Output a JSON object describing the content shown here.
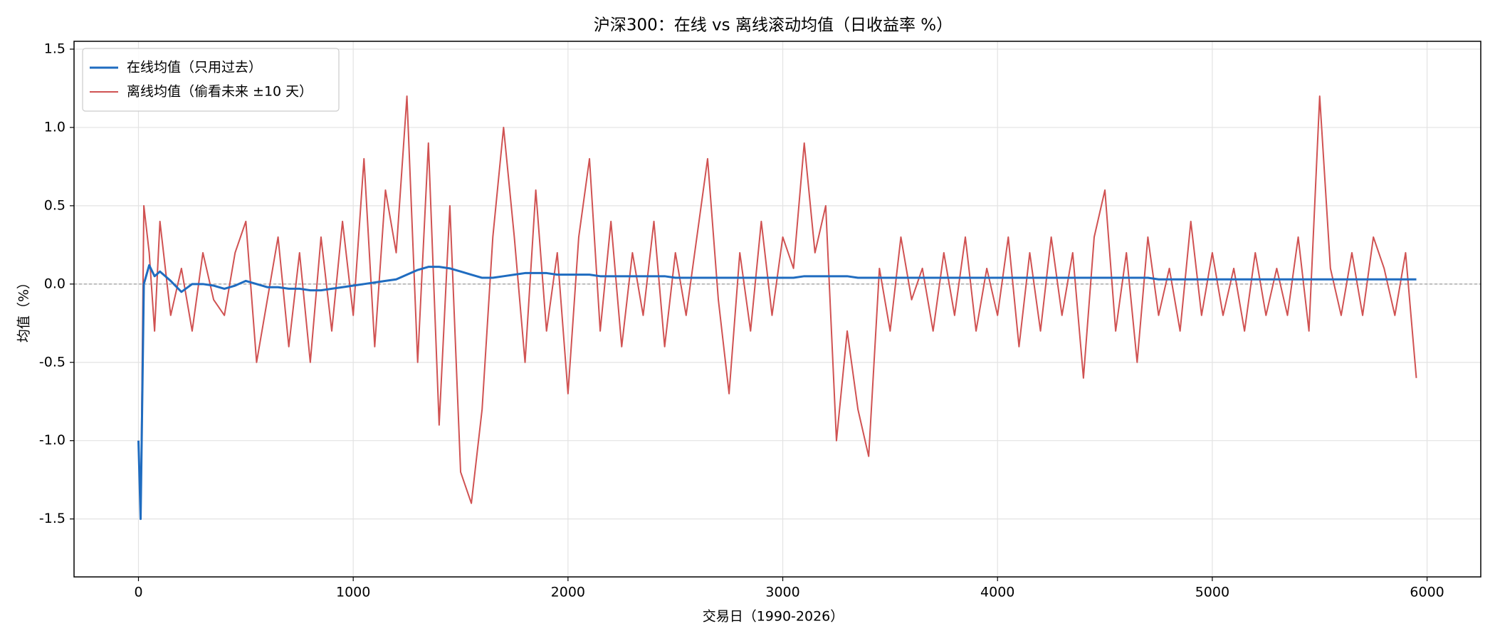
{
  "chart_data": {
    "type": "line",
    "title": "沪深300：在线 vs 离线滚动均值（日收益率 %）",
    "xlabel": "交易日（1990-2026）",
    "ylabel": "均值（%）",
    "x": [
      0,
      10,
      25,
      50,
      75,
      100,
      150,
      200,
      250,
      300,
      350,
      400,
      450,
      500,
      550,
      600,
      650,
      700,
      750,
      800,
      850,
      900,
      950,
      1000,
      1050,
      1100,
      1150,
      1200,
      1250,
      1300,
      1350,
      1400,
      1450,
      1500,
      1550,
      1600,
      1650,
      1700,
      1750,
      1800,
      1850,
      1900,
      1950,
      2000,
      2050,
      2100,
      2150,
      2200,
      2250,
      2300,
      2350,
      2400,
      2450,
      2500,
      2550,
      2600,
      2650,
      2700,
      2750,
      2800,
      2850,
      2900,
      2950,
      3000,
      3050,
      3100,
      3150,
      3200,
      3250,
      3300,
      3350,
      3400,
      3450,
      3500,
      3550,
      3600,
      3650,
      3700,
      3750,
      3800,
      3850,
      3900,
      3950,
      4000,
      4050,
      4100,
      4150,
      4200,
      4250,
      4300,
      4350,
      4400,
      4450,
      4500,
      4550,
      4600,
      4650,
      4700,
      4750,
      4800,
      4850,
      4900,
      4950,
      5000,
      5050,
      5100,
      5150,
      5200,
      5250,
      5300,
      5350,
      5400,
      5450,
      5500,
      5550,
      5600,
      5650,
      5700,
      5750,
      5800,
      5850,
      5900,
      5950
    ],
    "series": [
      {
        "name": "在线均值（只用过去）",
        "color": "#1f6cc0",
        "values": [
          -1.0,
          -1.5,
          0.0,
          0.12,
          0.05,
          0.08,
          0.02,
          -0.05,
          0.0,
          0.0,
          -0.01,
          -0.03,
          -0.01,
          0.02,
          0.0,
          -0.02,
          -0.02,
          -0.03,
          -0.03,
          -0.04,
          -0.04,
          -0.03,
          -0.02,
          -0.01,
          0.0,
          0.01,
          0.02,
          0.03,
          0.06,
          0.09,
          0.11,
          0.11,
          0.1,
          0.08,
          0.06,
          0.04,
          0.04,
          0.05,
          0.06,
          0.07,
          0.07,
          0.07,
          0.06,
          0.06,
          0.06,
          0.06,
          0.05,
          0.05,
          0.05,
          0.05,
          0.05,
          0.05,
          0.05,
          0.04,
          0.04,
          0.04,
          0.04,
          0.04,
          0.04,
          0.04,
          0.04,
          0.04,
          0.04,
          0.04,
          0.04,
          0.05,
          0.05,
          0.05,
          0.05,
          0.05,
          0.04,
          0.04,
          0.04,
          0.04,
          0.04,
          0.04,
          0.04,
          0.04,
          0.04,
          0.04,
          0.04,
          0.04,
          0.04,
          0.04,
          0.04,
          0.04,
          0.04,
          0.04,
          0.04,
          0.04,
          0.04,
          0.04,
          0.04,
          0.04,
          0.04,
          0.04,
          0.04,
          0.04,
          0.03,
          0.03,
          0.03,
          0.03,
          0.03,
          0.03,
          0.03,
          0.03,
          0.03,
          0.03,
          0.03,
          0.03,
          0.03,
          0.03,
          0.03,
          0.03,
          0.03,
          0.03,
          0.03,
          0.03,
          0.03,
          0.03,
          0.03,
          0.03,
          0.03
        ]
      },
      {
        "name": "离线均值（偷看未来 ±10 天）",
        "color": "#d05252",
        "values": [
          -1.0,
          -1.5,
          0.5,
          0.2,
          -0.3,
          0.4,
          -0.2,
          0.1,
          -0.3,
          0.2,
          -0.1,
          -0.2,
          0.2,
          0.4,
          -0.5,
          -0.1,
          0.3,
          -0.4,
          0.2,
          -0.5,
          0.3,
          -0.3,
          0.4,
          -0.2,
          0.8,
          -0.4,
          0.6,
          0.2,
          1.2,
          -0.5,
          0.9,
          -0.9,
          0.5,
          -1.2,
          -1.4,
          -0.8,
          0.3,
          1.0,
          0.3,
          -0.5,
          0.6,
          -0.3,
          0.2,
          -0.7,
          0.3,
          0.8,
          -0.3,
          0.4,
          -0.4,
          0.2,
          -0.2,
          0.4,
          -0.4,
          0.2,
          -0.2,
          0.3,
          0.8,
          -0.1,
          -0.7,
          0.2,
          -0.3,
          0.4,
          -0.2,
          0.3,
          0.1,
          0.9,
          0.2,
          0.5,
          -1.0,
          -0.3,
          -0.8,
          -1.1,
          0.1,
          -0.3,
          0.3,
          -0.1,
          0.1,
          -0.3,
          0.2,
          -0.2,
          0.3,
          -0.3,
          0.1,
          -0.2,
          0.3,
          -0.4,
          0.2,
          -0.3,
          0.3,
          -0.2,
          0.2,
          -0.6,
          0.3,
          0.6,
          -0.3,
          0.2,
          -0.5,
          0.3,
          -0.2,
          0.1,
          -0.3,
          0.4,
          -0.2,
          0.2,
          -0.2,
          0.1,
          -0.3,
          0.2,
          -0.2,
          0.1,
          -0.2,
          0.3,
          -0.3,
          1.2,
          0.1,
          -0.2,
          0.2,
          -0.2,
          0.3,
          0.1,
          -0.2,
          0.2,
          -0.6
        ]
      }
    ],
    "xlim": [
      -300,
      6250
    ],
    "xticks": [
      0,
      1000,
      2000,
      3000,
      4000,
      5000,
      6000
    ],
    "ylim": [
      -1.87,
      1.55
    ],
    "yticks": [
      -1.5,
      {
        "value": -1,
        "label": "-1.0"
      },
      -0.5,
      {
        "value": 0,
        "label": "0.0"
      },
      0.5,
      {
        "value": 1,
        "label": "1.0"
      },
      1.5
    ],
    "hline": 0,
    "grid": true,
    "legend": "upper-left"
  }
}
